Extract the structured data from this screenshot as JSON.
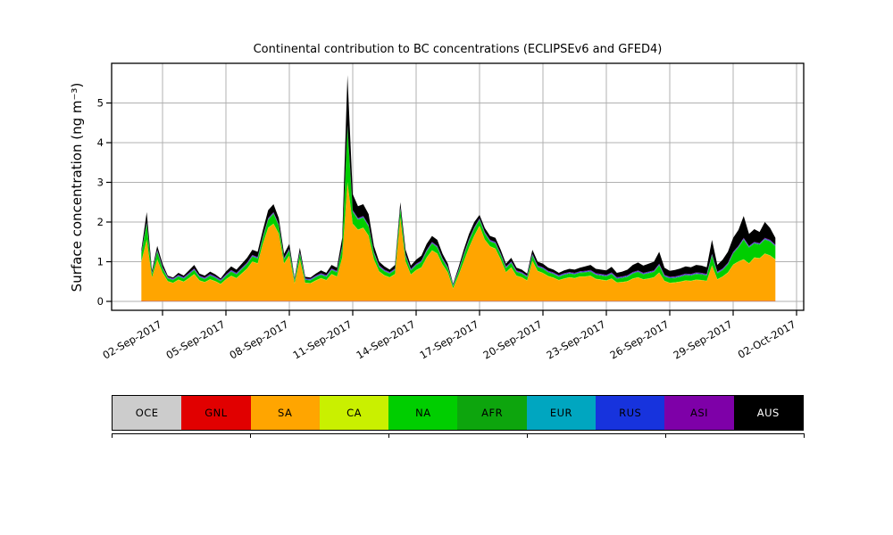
{
  "title": "Continental contribution to BC concentrations (ECLIPSEv6 and GFED4)",
  "axes": {
    "ylabel": "Surface concentration (ng m⁻³)",
    "yticks": [
      0,
      1,
      2,
      3,
      4,
      5
    ],
    "xtick_labels": [
      "02-Sep-2017",
      "05-Sep-2017",
      "08-Sep-2017",
      "11-Sep-2017",
      "14-Sep-2017",
      "17-Sep-2017",
      "20-Sep-2017",
      "23-Sep-2017",
      "26-Sep-2017",
      "29-Sep-2017",
      "02-Oct-2017"
    ],
    "grid_color": "#b0b0b0"
  },
  "legend": {
    "items": [
      {
        "label": "OCE",
        "color": "#cccccc",
        "text_color": "#000000"
      },
      {
        "label": "GNL",
        "color": "#e10000",
        "text_color": "#000000"
      },
      {
        "label": "SA",
        "color": "#ffa500",
        "text_color": "#000000"
      },
      {
        "label": "CA",
        "color": "#c9f000",
        "text_color": "#000000"
      },
      {
        "label": "NA",
        "color": "#00ce00",
        "text_color": "#000000"
      },
      {
        "label": "AFR",
        "color": "#0da50d",
        "text_color": "#000000"
      },
      {
        "label": "EUR",
        "color": "#00a6c0",
        "text_color": "#000000"
      },
      {
        "label": "RUS",
        "color": "#1733dd",
        "text_color": "#000000"
      },
      {
        "label": "ASI",
        "color": "#7e00a8",
        "text_color": "#000000"
      },
      {
        "label": "AUS",
        "color": "#000000",
        "text_color": "#ffffff"
      }
    ]
  },
  "chart_data": {
    "type": "area",
    "stacked": true,
    "title": "Continental contribution to BC concentrations (ECLIPSEv6 and GFED4)",
    "xlabel": "",
    "ylabel": "Surface concentration (ng m⁻³)",
    "ylim": [
      -0.22,
      6.0
    ],
    "grid": true,
    "legend_position": "below, horizontal color strip",
    "x_unit": "days relative to 02-Sep-2017 00:00 UTC",
    "x_range": [
      -1.0,
      29.0
    ],
    "x_step": 0.25,
    "xticks": {
      "t": [
        0,
        3,
        6,
        9,
        12,
        15,
        18,
        21,
        24,
        27,
        30
      ],
      "labels": [
        "02-Sep-2017",
        "05-Sep-2017",
        "08-Sep-2017",
        "11-Sep-2017",
        "14-Sep-2017",
        "17-Sep-2017",
        "20-Sep-2017",
        "23-Sep-2017",
        "26-Sep-2017",
        "29-Sep-2017",
        "02-Oct-2017"
      ]
    },
    "stack_order": [
      "OCE",
      "GNL",
      "SA",
      "CA",
      "NA",
      "AFR",
      "EUR",
      "RUS",
      "ASI",
      "AUS"
    ],
    "note": "cum_top arrays give the cumulative stack height (ng m-3) at the top of that layer; thin layers are given as constant thickness estimated from the ~1px slivers visible in the plot",
    "layers": [
      {
        "name": "OCE",
        "color": "#cccccc",
        "thickness": 0.004
      },
      {
        "name": "GNL",
        "color": "#e10000",
        "thickness": 0.01
      },
      {
        "name": "SA",
        "color": "#ffa500",
        "cum_top": [
          1.0,
          1.55,
          0.6,
          1.05,
          0.72,
          0.5,
          0.46,
          0.54,
          0.49,
          0.58,
          0.68,
          0.52,
          0.48,
          0.55,
          0.5,
          0.43,
          0.55,
          0.64,
          0.58,
          0.7,
          0.82,
          1.0,
          0.95,
          1.45,
          1.85,
          1.95,
          1.7,
          0.95,
          1.15,
          0.45,
          1.05,
          0.46,
          0.45,
          0.52,
          0.58,
          0.53,
          0.68,
          0.62,
          1.1,
          3.0,
          1.95,
          1.8,
          1.85,
          1.65,
          1.05,
          0.75,
          0.65,
          0.6,
          0.68,
          2.1,
          1.0,
          0.67,
          0.78,
          0.85,
          1.1,
          1.28,
          1.2,
          0.92,
          0.72,
          0.32,
          0.64,
          1.0,
          1.35,
          1.65,
          1.9,
          1.55,
          1.38,
          1.32,
          1.05,
          0.73,
          0.85,
          0.64,
          0.6,
          0.52,
          1.02,
          0.76,
          0.71,
          0.63,
          0.59,
          0.53,
          0.57,
          0.6,
          0.58,
          0.62,
          0.62,
          0.64,
          0.56,
          0.54,
          0.52,
          0.57,
          0.47,
          0.48,
          0.5,
          0.57,
          0.6,
          0.55,
          0.57,
          0.6,
          0.72,
          0.51,
          0.46,
          0.47,
          0.49,
          0.52,
          0.51,
          0.54,
          0.53,
          0.51,
          0.9,
          0.55,
          0.62,
          0.72,
          0.92,
          1.0,
          1.05,
          0.95,
          1.1,
          1.08,
          1.2,
          1.15,
          1.05
        ]
      },
      {
        "name": "CA",
        "color": "#c9f000",
        "thickness": 0.01
      },
      {
        "name": "NA",
        "color": "#00ce00",
        "cum_top": [
          1.2,
          1.95,
          0.68,
          1.25,
          0.82,
          0.57,
          0.53,
          0.62,
          0.56,
          0.67,
          0.78,
          0.6,
          0.55,
          0.64,
          0.58,
          0.5,
          0.63,
          0.74,
          0.67,
          0.8,
          0.93,
          1.12,
          1.07,
          1.6,
          2.05,
          2.2,
          1.9,
          1.05,
          1.28,
          0.52,
          1.2,
          0.53,
          0.52,
          0.6,
          0.66,
          0.61,
          0.78,
          0.72,
          1.35,
          4.4,
          2.25,
          2.05,
          2.1,
          1.88,
          1.2,
          0.86,
          0.75,
          0.69,
          0.78,
          2.32,
          1.13,
          0.77,
          0.9,
          0.98,
          1.25,
          1.45,
          1.35,
          1.04,
          0.82,
          0.38,
          0.73,
          1.15,
          1.52,
          1.82,
          2.05,
          1.7,
          1.5,
          1.45,
          1.16,
          0.83,
          0.96,
          0.73,
          0.69,
          0.6,
          1.15,
          0.86,
          0.81,
          0.72,
          0.68,
          0.61,
          0.66,
          0.69,
          0.67,
          0.71,
          0.72,
          0.74,
          0.66,
          0.64,
          0.62,
          0.68,
          0.56,
          0.58,
          0.61,
          0.69,
          0.73,
          0.67,
          0.7,
          0.73,
          0.9,
          0.62,
          0.57,
          0.58,
          0.61,
          0.65,
          0.64,
          0.68,
          0.67,
          0.64,
          1.15,
          0.7,
          0.78,
          0.92,
          1.2,
          1.35,
          1.55,
          1.35,
          1.45,
          1.42,
          1.55,
          1.5,
          1.38
        ]
      },
      {
        "name": "AFR",
        "color": "#0da50d",
        "thickness": 0.015
      },
      {
        "name": "EUR",
        "color": "#00a6c0",
        "thickness": 0.008
      },
      {
        "name": "RUS",
        "color": "#1733dd",
        "thickness": 0.012
      },
      {
        "name": "ASI",
        "color": "#7e00a8",
        "thickness": 0.015
      },
      {
        "name": "AUS",
        "color": "#000000",
        "cum_top": [
          1.3,
          2.25,
          0.78,
          1.4,
          0.95,
          0.65,
          0.6,
          0.72,
          0.65,
          0.78,
          0.92,
          0.7,
          0.65,
          0.75,
          0.68,
          0.58,
          0.75,
          0.88,
          0.8,
          0.95,
          1.1,
          1.3,
          1.25,
          1.8,
          2.3,
          2.45,
          2.1,
          1.2,
          1.45,
          0.6,
          1.35,
          0.62,
          0.6,
          0.7,
          0.78,
          0.72,
          0.92,
          0.85,
          1.6,
          5.7,
          2.7,
          2.4,
          2.45,
          2.2,
          1.4,
          1.0,
          0.88,
          0.8,
          0.92,
          2.5,
          1.3,
          0.9,
          1.05,
          1.15,
          1.45,
          1.65,
          1.55,
          1.2,
          0.95,
          0.45,
          0.85,
          1.3,
          1.7,
          2.0,
          2.18,
          1.85,
          1.65,
          1.6,
          1.3,
          0.95,
          1.1,
          0.85,
          0.8,
          0.7,
          1.3,
          1.0,
          0.95,
          0.85,
          0.8,
          0.72,
          0.78,
          0.82,
          0.8,
          0.85,
          0.88,
          0.92,
          0.82,
          0.8,
          0.78,
          0.87,
          0.72,
          0.75,
          0.8,
          0.92,
          0.98,
          0.9,
          0.95,
          1.0,
          1.25,
          0.85,
          0.77,
          0.79,
          0.83,
          0.88,
          0.86,
          0.92,
          0.9,
          0.86,
          1.55,
          0.92,
          1.05,
          1.25,
          1.6,
          1.8,
          2.15,
          1.7,
          1.82,
          1.75,
          2.0,
          1.85,
          1.6
        ]
      }
    ]
  }
}
